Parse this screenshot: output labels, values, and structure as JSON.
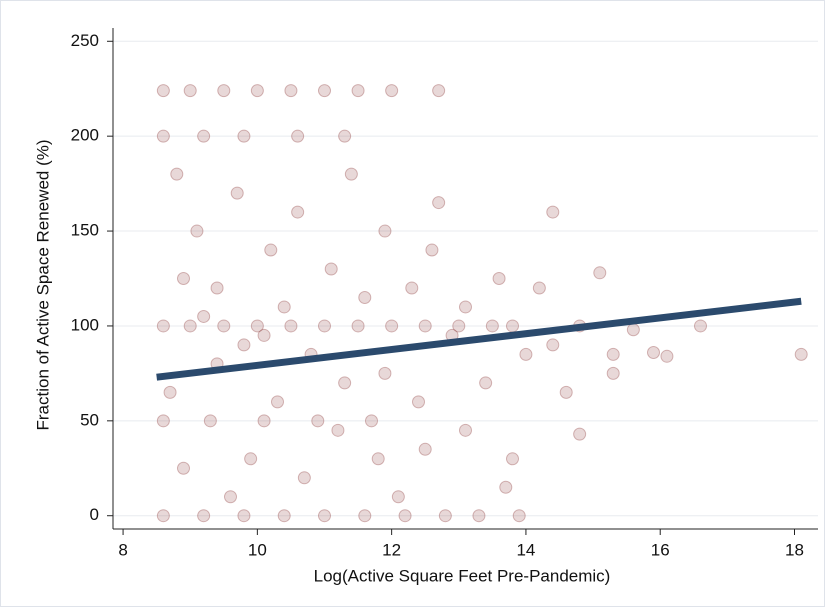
{
  "chart_data": {
    "type": "scatter",
    "x_label": "Log(Active Square Feet Pre-Pandemic)",
    "y_label": "Fraction of Active Space Renewed (%)",
    "xlim": [
      7.85,
      18.35
    ],
    "ylim": [
      -7,
      257
    ],
    "xticks": [
      8,
      10,
      12,
      14,
      16,
      18
    ],
    "yticks": [
      0,
      50,
      100,
      150,
      200,
      250
    ],
    "grid": true,
    "color": "#8b3a3a",
    "points": {
      "x": [
        8.6,
        9.0,
        9.5,
        10.0,
        10.5,
        11.0,
        11.5,
        12.0,
        12.7,
        8.6,
        9.2,
        9.8,
        10.6,
        11.3,
        8.6,
        9.0,
        9.5,
        10.0,
        10.5,
        11.0,
        11.5,
        12.0,
        12.5,
        13.0,
        13.5,
        13.8,
        8.6,
        9.2,
        9.8,
        10.4,
        11.0,
        11.6,
        12.2,
        12.8,
        13.3,
        13.9,
        8.6,
        9.3,
        10.1,
        10.9,
        11.7,
        8.8,
        9.1,
        9.4,
        9.7,
        10.2,
        10.6,
        11.1,
        11.4,
        11.9,
        12.3,
        12.6,
        13.1,
        13.6,
        14.2,
        14.4,
        15.1,
        14.8,
        15.3,
        15.6,
        15.9,
        16.1,
        16.6,
        18.1,
        15.3,
        14.8,
        13.8,
        13.1,
        12.4,
        11.8,
        11.3,
        10.8,
        10.3,
        9.9,
        9.4,
        8.9,
        8.7,
        9.6,
        10.7,
        12.1,
        13.4,
        14.0,
        14.6,
        12.9,
        11.6,
        10.1,
        9.2,
        8.9,
        12.7,
        14.4,
        13.7,
        12.5,
        11.2,
        10.4,
        9.8,
        11.9
      ],
      "y": [
        224,
        224,
        224,
        224,
        224,
        224,
        224,
        224,
        224,
        200,
        200,
        200,
        200,
        200,
        100,
        100,
        100,
        100,
        100,
        100,
        100,
        100,
        100,
        100,
        100,
        100,
        0,
        0,
        0,
        0,
        0,
        0,
        0,
        0,
        0,
        0,
        50,
        50,
        50,
        50,
        50,
        180,
        150,
        120,
        170,
        140,
        160,
        130,
        180,
        150,
        120,
        140,
        110,
        125,
        120,
        160,
        128,
        100,
        85,
        98,
        86,
        84,
        100,
        85,
        75,
        43,
        30,
        45,
        60,
        30,
        70,
        85,
        60,
        30,
        80,
        25,
        65,
        10,
        20,
        10,
        70,
        85,
        65,
        95,
        115,
        95,
        105,
        125,
        165,
        90,
        15,
        35,
        45,
        110,
        90,
        75
      ]
    },
    "fit_line": {
      "color": "#2b4a6d",
      "x": [
        8.5,
        18.1
      ],
      "y": [
        73,
        113
      ]
    }
  }
}
